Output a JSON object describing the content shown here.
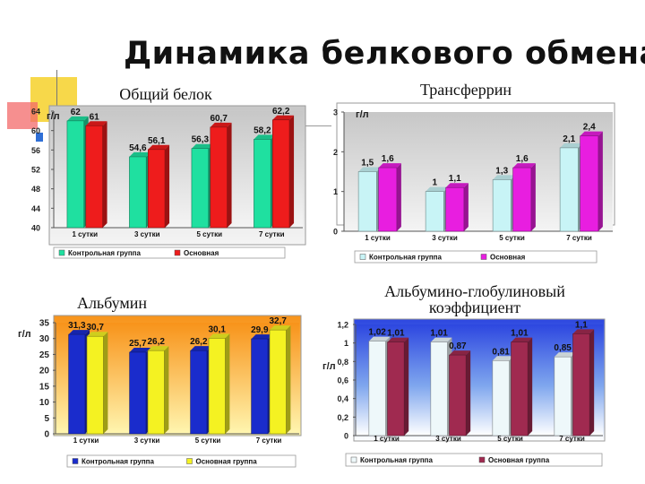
{
  "slide": {
    "title": "Динамика белкового обмена",
    "colors": {
      "accent_yellow": "#f7d84a",
      "accent_red": "#f03a3a",
      "accent_blue": "#2f6fd6"
    }
  },
  "chart_data": [
    {
      "id": "total-protein",
      "type": "bar",
      "title": "Общий белок",
      "ylabel": "г/л",
      "categories": [
        "1 сутки",
        "3 сутки",
        "5 сутки",
        "7 сутки"
      ],
      "ylim": [
        40,
        64
      ],
      "yticks": [
        "40",
        "44",
        "48",
        "52",
        "56",
        "60",
        "64"
      ],
      "series": [
        {
          "name": "Контрольная группа",
          "color": "#1fe0a0",
          "values": [
            62,
            54.6,
            56.3,
            58.2
          ],
          "labels": [
            "62",
            "54,6",
            "56,3",
            "58,2"
          ]
        },
        {
          "name": "Основная",
          "color": "#ee1c1c",
          "values": [
            61,
            56.1,
            60.7,
            62.2
          ],
          "labels": [
            "61",
            "56,1",
            "60,7",
            "62,2"
          ]
        }
      ],
      "legend": "bottom"
    },
    {
      "id": "transferrin",
      "type": "bar",
      "title": "Трансферрин",
      "ylabel": "г/л",
      "categories": [
        "1 сутки",
        "3 сутки",
        "5 сутки",
        "7 сутки"
      ],
      "ylim": [
        0,
        3
      ],
      "yticks": [
        "0",
        "1",
        "2",
        "3"
      ],
      "series": [
        {
          "name": "Контрольная группа",
          "color": "#c8f4f6",
          "values": [
            1.5,
            1.0,
            1.3,
            2.1
          ],
          "labels": [
            "1,5",
            "1",
            "1,3",
            "2,1"
          ]
        },
        {
          "name": "Основная",
          "color": "#e81ee0",
          "values": [
            1.6,
            1.1,
            1.6,
            2.4
          ],
          "labels": [
            "1,6",
            "1,1",
            "1,6",
            "2,4"
          ]
        }
      ],
      "legend": "bottom"
    },
    {
      "id": "albumin",
      "type": "bar",
      "title": "Альбумин",
      "ylabel": "г/л",
      "categories": [
        "1 сутки",
        "3 сутки",
        "5 сутки",
        "7 сутки"
      ],
      "ylim": [
        0,
        35
      ],
      "yticks": [
        "0",
        "5",
        "10",
        "15",
        "20",
        "25",
        "30",
        "35"
      ],
      "series": [
        {
          "name": "Контрольная группа",
          "color": "#1a2ccc",
          "values": [
            31.3,
            25.7,
            26.2,
            29.9
          ],
          "labels": [
            "31,3",
            "25,7",
            "26,2",
            "29,9"
          ]
        },
        {
          "name": "Основная группа",
          "color": "#f4f222",
          "values": [
            30.7,
            26.2,
            30.1,
            32.7
          ],
          "labels": [
            "30,7",
            "26,2",
            "30,1",
            "32,7"
          ]
        }
      ],
      "legend": "bottom"
    },
    {
      "id": "ag-ratio",
      "type": "bar",
      "title": "Альбумино-глобулиновый коэффициент",
      "title_lines": [
        "Альбумино-глобулиновый",
        "коэффициент"
      ],
      "ylabel": "г/л",
      "categories": [
        "1 сутки",
        "3 сутки",
        "5 сутки",
        "7 сутки"
      ],
      "ylim": [
        0,
        1.2
      ],
      "yticks": [
        "0",
        "0,2",
        "0,4",
        "0,6",
        "0,8",
        "1",
        "1,2"
      ],
      "series": [
        {
          "name": "Контрольная группа",
          "color": "#eef8fa",
          "values": [
            1.02,
            1.01,
            0.81,
            0.85
          ],
          "labels": [
            "1,02",
            "1,01",
            "0,81",
            "0,85"
          ]
        },
        {
          "name": "Основная группа",
          "color": "#a02a50",
          "values": [
            1.01,
            0.87,
            1.01,
            1.1
          ],
          "labels": [
            "1,01",
            "0,87",
            "1,01",
            "1,1"
          ]
        }
      ],
      "legend": "bottom"
    }
  ]
}
